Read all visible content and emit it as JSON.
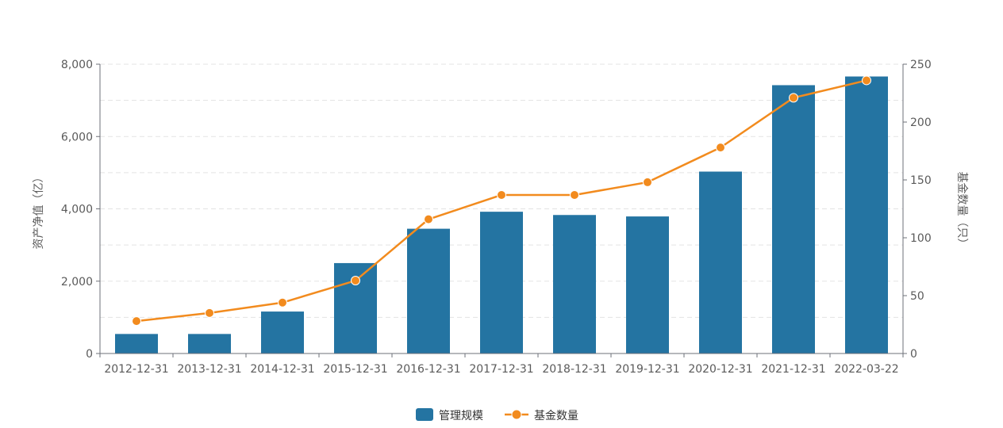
{
  "chart_data": {
    "type": "bar",
    "categories": [
      "2012-12-31",
      "2013-12-31",
      "2014-12-31",
      "2015-12-31",
      "2016-12-31",
      "2017-12-31",
      "2018-12-31",
      "2019-12-31",
      "2020-12-31",
      "2021-12-31",
      "2022-03-22"
    ],
    "series": [
      {
        "name": "管理规模",
        "type": "bar",
        "axis": "left",
        "color": "#2474a2",
        "values": [
          540,
          540,
          1160,
          2500,
          3450,
          3920,
          3830,
          3790,
          5030,
          7420,
          7660
        ]
      },
      {
        "name": "基金数量",
        "type": "line",
        "axis": "right",
        "color": "#f28b1e",
        "values": [
          28,
          35,
          44,
          63,
          116,
          137,
          137,
          148,
          178,
          221,
          236
        ]
      }
    ],
    "ylabel_left": "资产净值（亿）",
    "ylabel_right": "基金数量（只）",
    "ylim_left": [
      0,
      8000
    ],
    "ylim_right": [
      0,
      250
    ],
    "left_ticks": [
      "0",
      "2,000",
      "4,000",
      "6,000",
      "8,000"
    ],
    "left_tick_values": [
      0,
      2000,
      4000,
      6000,
      8000
    ],
    "right_ticks": [
      "0",
      "50",
      "100",
      "150",
      "200",
      "250"
    ],
    "right_tick_values": [
      0,
      50,
      100,
      150,
      200,
      250
    ],
    "grid": true,
    "legend_position": "bottom-center"
  }
}
